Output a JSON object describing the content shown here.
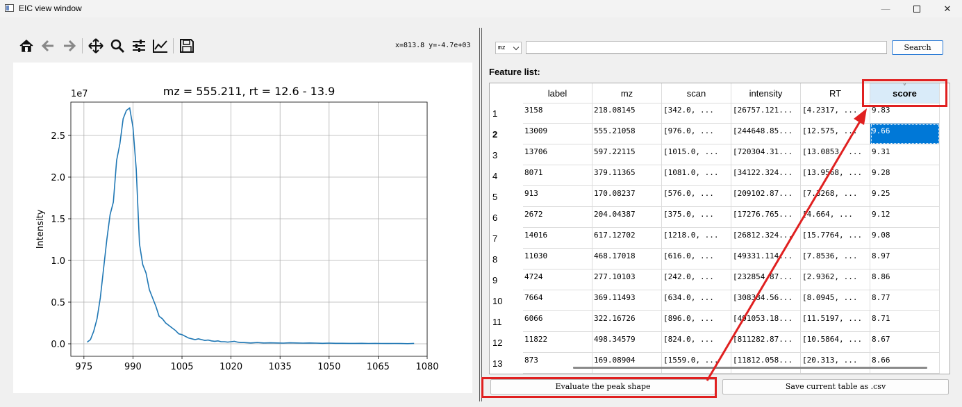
{
  "window": {
    "title": "EIC view window",
    "minimize_glyph": "—",
    "close_glyph": "✕"
  },
  "toolbar": {
    "icons": [
      "home-icon",
      "back-arrow-icon",
      "forward-arrow-icon",
      "pan-icon",
      "zoom-icon",
      "configure-subplots-icon",
      "edit-axis-icon",
      "save-icon"
    ],
    "coords_readout": "x=813.8 y=-4.7e+03"
  },
  "plot": {
    "title": "mz = 555.211, rt = 12.6 - 13.9",
    "ylabel": "Intensity",
    "xlabel": "",
    "y_multiplier": "1e7",
    "x_ticks": [
      "975",
      "990",
      "1005",
      "1020",
      "1035",
      "1050",
      "1065",
      "1080"
    ],
    "y_ticks": [
      "0.0",
      "0.5",
      "1.0",
      "1.5",
      "2.0",
      "2.5"
    ],
    "line_color": "#1f77b4"
  },
  "chart_data": {
    "type": "line",
    "title": "mz = 555.211, rt = 12.6 - 13.9",
    "xlabel": "",
    "ylabel": "Intensity",
    "y_multiplier": "1e7",
    "xlim": [
      971,
      1080
    ],
    "ylim": [
      -1500000,
      29000000
    ],
    "grid": true,
    "series": [
      {
        "x": [
          976,
          977,
          978,
          979,
          980,
          981,
          982,
          983,
          984,
          985,
          986,
          987,
          988,
          989,
          990,
          991,
          992,
          993,
          994,
          995,
          996,
          997,
          998,
          999,
          1000,
          1001,
          1002,
          1003,
          1004,
          1005,
          1006,
          1007,
          1008,
          1009,
          1010,
          1011,
          1012,
          1013,
          1014,
          1015,
          1016,
          1017,
          1018,
          1019,
          1020,
          1021,
          1022,
          1023,
          1024,
          1026,
          1028,
          1030,
          1032,
          1034,
          1036,
          1038,
          1040,
          1042,
          1044,
          1046,
          1048,
          1050,
          1052,
          1054,
          1056,
          1058,
          1060,
          1062,
          1064,
          1066,
          1068,
          1070,
          1072,
          1074,
          1076
        ],
        "y": [
          200000,
          500000,
          1500000,
          3000000,
          5500000,
          9000000,
          12500000,
          15500000,
          17000000,
          22000000,
          24000000,
          27000000,
          28000000,
          28300000,
          26000000,
          21000000,
          12000000,
          9500000,
          8500000,
          6500000,
          5500000,
          4500000,
          3300000,
          3000000,
          2500000,
          2200000,
          1900000,
          1600000,
          1200000,
          1100000,
          900000,
          700000,
          600000,
          500000,
          600000,
          500000,
          400000,
          450000,
          350000,
          300000,
          350000,
          250000,
          250000,
          200000,
          250000,
          300000,
          200000,
          150000,
          150000,
          100000,
          150000,
          100000,
          120000,
          100000,
          80000,
          120000,
          100000,
          80000,
          100000,
          80000,
          60000,
          80000,
          60000,
          60000,
          50000,
          50000,
          60000,
          40000,
          50000,
          40000,
          30000,
          40000,
          30000,
          20000,
          50000
        ]
      }
    ]
  },
  "search": {
    "combo_value": "mz",
    "input_value": "",
    "button_label": "Search"
  },
  "feature_list": {
    "label": "Feature list:",
    "columns": [
      "label",
      "mz",
      "scan",
      "intensity",
      "RT",
      "score"
    ],
    "sorted_column": "score",
    "sort_indicator": "˅",
    "selected_row": 1,
    "row_numbers": [
      "1",
      "2",
      "3",
      "4",
      "5",
      "6",
      "7",
      "8",
      "9",
      "10",
      "11",
      "12",
      "13"
    ],
    "rows": [
      [
        "3158",
        "218.08145",
        "[342.0, ...",
        "[26757.121...",
        "[4.2317, ...",
        "9.83"
      ],
      [
        "13009",
        "555.21058",
        "[976.0, ...",
        "[244648.85...",
        "[12.575, ...",
        "9.66"
      ],
      [
        "13706",
        "597.22115",
        "[1015.0, ...",
        "[720304.31...",
        "[13.0853, ...",
        "9.31"
      ],
      [
        "8071",
        "379.11365",
        "[1081.0, ...",
        "[34122.324...",
        "[13.9568, ...",
        "9.28"
      ],
      [
        "913",
        "170.08237",
        "[576.0, ...",
        "[209102.87...",
        "[7.3268, ...",
        "9.25"
      ],
      [
        "2672",
        "204.04387",
        "[375.0, ...",
        "[17276.765...",
        "[4.664, ...",
        "9.12"
      ],
      [
        "14016",
        "617.12702",
        "[1218.0, ...",
        "[26812.324...",
        "[15.7764, ...",
        "9.08"
      ],
      [
        "11030",
        "468.17018",
        "[616.0, ...",
        "[49331.114...",
        "[7.8536, ...",
        "8.97"
      ],
      [
        "4724",
        "277.10103",
        "[242.0, ...",
        "[232854.87...",
        "[2.9362, ...",
        "8.86"
      ],
      [
        "7664",
        "369.11493",
        "[634.0, ...",
        "[308384.56...",
        "[8.0945, ...",
        "8.77"
      ],
      [
        "6066",
        "322.16726",
        "[896.0, ...",
        "[491053.18...",
        "[11.5197, ...",
        "8.71"
      ],
      [
        "11822",
        "498.34579",
        "[824.0, ...",
        "[811282.87...",
        "[10.5864, ...",
        "8.67"
      ],
      [
        "873",
        "169.08904",
        "[1559.0, ...",
        "[11812.058...",
        "[20.313, ...",
        "8.66"
      ]
    ]
  },
  "actions": {
    "evaluate_label": "Evaluate the peak shape",
    "save_label": "Save current table as .csv"
  },
  "annotations": {
    "color": "#e02020"
  }
}
